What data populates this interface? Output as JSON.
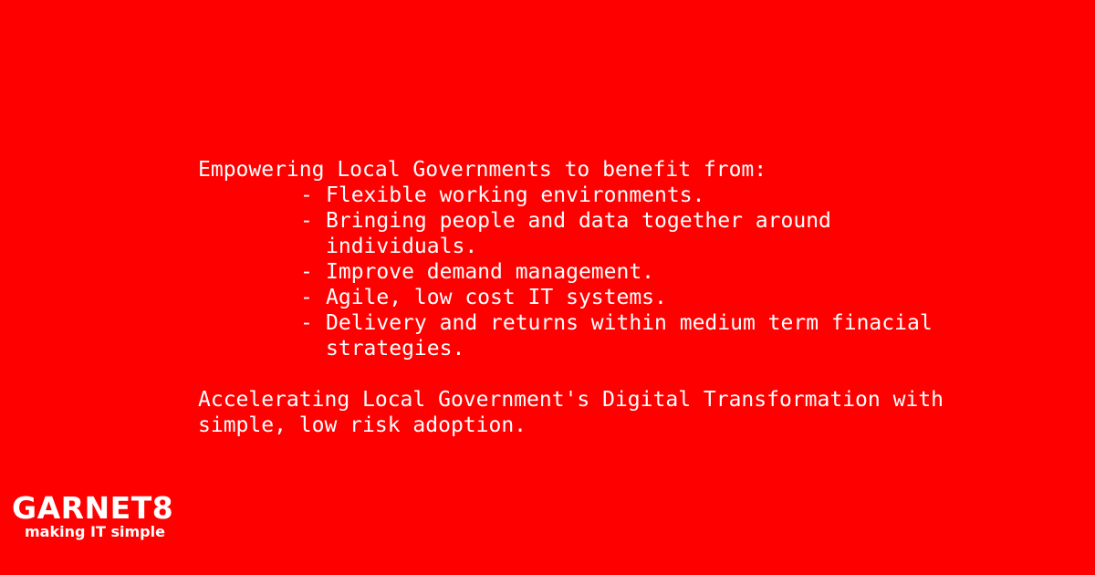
{
  "intro": "Empowering Local Governments to benefit from:",
  "bullets": [
    "Flexible working environments.",
    "Bringing people and data together around individuals.",
    "Improve demand management.",
    "Agile, low cost IT systems.",
    "Delivery and returns within medium term finacial strategies."
  ],
  "bullet_marker": "-",
  "closing": "Accelerating Local Government's Digital Transformation with simple, low risk adoption.",
  "logo": {
    "name": "GARNET8",
    "tagline": "making IT simple"
  },
  "colors": {
    "background": "#ff0000",
    "text": "#ffffff"
  }
}
